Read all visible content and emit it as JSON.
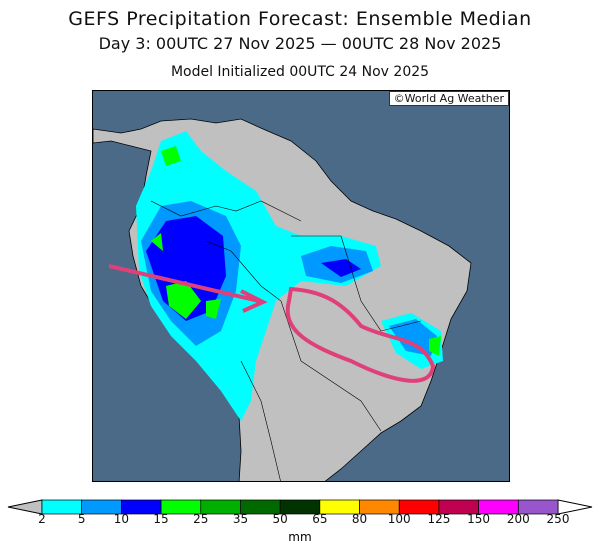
{
  "title": "GEFS Precipitation Forecast: Ensemble Median",
  "subtitle": "Day 3: 00UTC 27 Nov 2025 — 00UTC 28 Nov 2025",
  "init": "Model Initialized 00UTC 24 Nov 2025",
  "copyright": "©World Ag Weather",
  "colorbar": {
    "unit": "mm",
    "labels": [
      "2",
      "5",
      "10",
      "15",
      "25",
      "35",
      "50",
      "65",
      "80",
      "100",
      "125",
      "150",
      "200",
      "250"
    ],
    "colors": [
      "#00ffff",
      "#0099ff",
      "#0000ff",
      "#00ff00",
      "#00b000",
      "#006a00",
      "#003300",
      "#ffff00",
      "#ff8800",
      "#ff0000",
      "#c00050",
      "#ff00ff",
      "#9955cc"
    ],
    "under_color": "#c0c0c0",
    "over_color": "#ffffff"
  },
  "colors": {
    "ocean": "#4b6a88",
    "land": "#c0c0c0",
    "annotation": "#e0407a"
  }
}
